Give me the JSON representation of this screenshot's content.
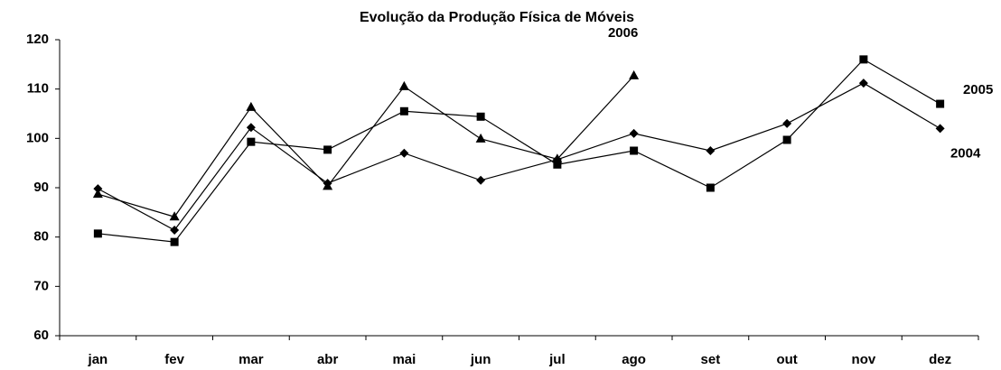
{
  "chart_data": {
    "type": "line",
    "title": "Evolução da Produção Física de Móveis",
    "categories": [
      "jan",
      "fev",
      "mar",
      "abr",
      "mai",
      "jun",
      "jul",
      "ago",
      "set",
      "out",
      "nov",
      "dez"
    ],
    "series": [
      {
        "name": "2004",
        "color": "#000000",
        "marker": "diamond",
        "values": [
          89.8,
          81.4,
          102.2,
          90.9,
          97,
          91.5,
          95.7,
          101,
          97.5,
          103,
          111.2,
          102
        ]
      },
      {
        "name": "2005",
        "color": "#000000",
        "marker": "square",
        "values": [
          80.7,
          79,
          99.3,
          97.7,
          105.5,
          104.4,
          94.7,
          97.5,
          90,
          99.7,
          116,
          107
        ]
      },
      {
        "name": "2006",
        "color": "#000000",
        "marker": "triangle",
        "values": [
          88.7,
          84.1,
          106.3,
          90.3,
          110.5,
          99.9,
          95.8,
          112.7,
          null,
          null,
          null,
          null
        ]
      }
    ],
    "ylim": [
      60,
      120
    ],
    "yticks": [
      60,
      70,
      80,
      90,
      100,
      110,
      120
    ],
    "grid": false
  }
}
